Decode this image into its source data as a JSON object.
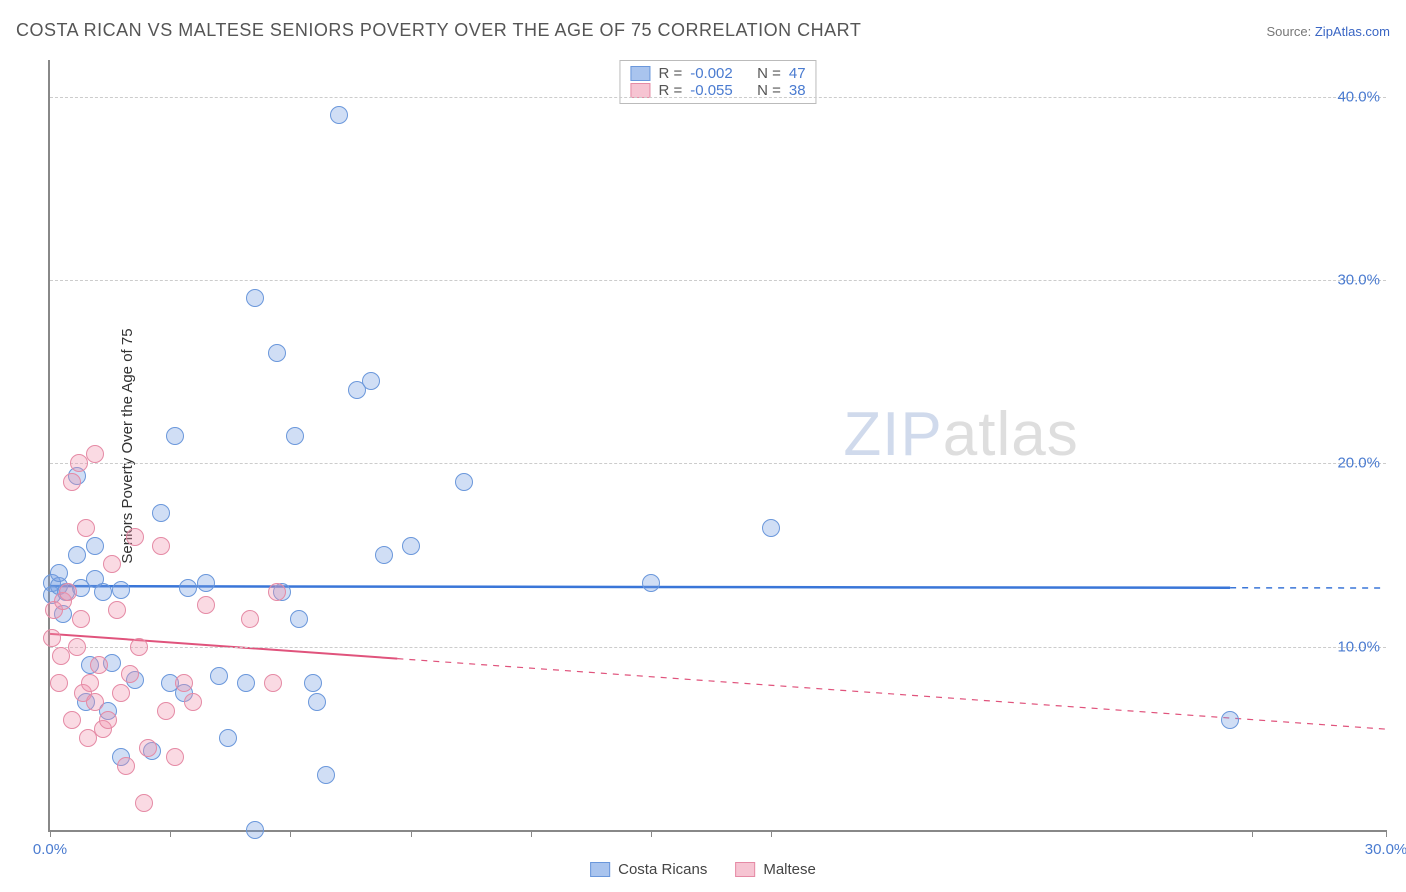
{
  "header": {
    "title": "COSTA RICAN VS MALTESE SENIORS POVERTY OVER THE AGE OF 75 CORRELATION CHART",
    "source_prefix": "Source: ",
    "source_link": "ZipAtlas.com"
  },
  "chart": {
    "type": "scatter",
    "background_color": "#ffffff",
    "grid_color": "#cccccc",
    "axis_color": "#888888",
    "ylabel": "Seniors Poverty Over the Age of 75",
    "label_fontsize": 15,
    "tick_fontsize": 15,
    "tick_color": "#4a7bd0",
    "xlim": [
      0,
      30
    ],
    "ylim": [
      0,
      42
    ],
    "xticks": [
      0,
      2.7,
      5.4,
      8.1,
      10.8,
      13.5,
      16.2,
      27,
      30
    ],
    "xtick_labels": {
      "0": "0.0%",
      "30": "30.0%"
    },
    "yticks": [
      10,
      20,
      30,
      40
    ],
    "ytick_labels": {
      "10": "10.0%",
      "20": "20.0%",
      "30": "30.0%",
      "40": "40.0%"
    },
    "marker_radius": 9,
    "marker_border_width": 1.5,
    "watermark": {
      "zip": "ZIP",
      "atlas": "atlas"
    },
    "series": [
      {
        "name": "Costa Ricans",
        "fill": "rgba(120,160,225,0.35)",
        "stroke": "#6a97db",
        "swatch_fill": "#a9c4ee",
        "swatch_border": "#6a97db",
        "stats": {
          "R": "-0.002",
          "N": "47"
        },
        "trend": {
          "y_start": 13.3,
          "y_end": 13.2,
          "x_solid_end": 26.5,
          "color": "#3a76d8",
          "width": 2.5
        },
        "points": [
          [
            0.05,
            13.5
          ],
          [
            0.05,
            12.8
          ],
          [
            0.2,
            13.3
          ],
          [
            0.2,
            14.0
          ],
          [
            0.3,
            11.8
          ],
          [
            0.35,
            13.0
          ],
          [
            0.6,
            15.0
          ],
          [
            0.6,
            19.3
          ],
          [
            0.7,
            13.2
          ],
          [
            0.8,
            7.0
          ],
          [
            0.9,
            9.0
          ],
          [
            1.0,
            13.7
          ],
          [
            1.0,
            15.5
          ],
          [
            1.2,
            13.0
          ],
          [
            1.3,
            6.5
          ],
          [
            1.4,
            9.1
          ],
          [
            1.6,
            13.1
          ],
          [
            1.6,
            4.0
          ],
          [
            1.9,
            8.2
          ],
          [
            2.3,
            4.3
          ],
          [
            2.5,
            17.3
          ],
          [
            2.7,
            8.0
          ],
          [
            2.8,
            21.5
          ],
          [
            3.0,
            7.5
          ],
          [
            3.1,
            13.2
          ],
          [
            3.5,
            13.5
          ],
          [
            3.8,
            8.4
          ],
          [
            4.0,
            5.0
          ],
          [
            4.4,
            8.0
          ],
          [
            4.6,
            29.0
          ],
          [
            4.6,
            0.0
          ],
          [
            5.1,
            26.0
          ],
          [
            5.2,
            13.0
          ],
          [
            5.5,
            21.5
          ],
          [
            5.6,
            11.5
          ],
          [
            5.9,
            8.0
          ],
          [
            6.0,
            7.0
          ],
          [
            6.2,
            3.0
          ],
          [
            6.5,
            39.0
          ],
          [
            6.9,
            24.0
          ],
          [
            7.2,
            24.5
          ],
          [
            7.5,
            15.0
          ],
          [
            8.1,
            15.5
          ],
          [
            9.3,
            19.0
          ],
          [
            13.5,
            13.5
          ],
          [
            16.2,
            16.5
          ],
          [
            26.5,
            6.0
          ]
        ]
      },
      {
        "name": "Maltese",
        "fill": "rgba(240,150,175,0.35)",
        "stroke": "#e58aa5",
        "swatch_fill": "#f6c4d2",
        "swatch_border": "#e58aa5",
        "stats": {
          "R": "-0.055",
          "N": "38"
        },
        "trend": {
          "y_start": 10.7,
          "y_end": 5.5,
          "x_solid_end": 7.8,
          "color": "#e0537c",
          "width": 2
        },
        "points": [
          [
            0.05,
            10.5
          ],
          [
            0.1,
            12.0
          ],
          [
            0.2,
            8.0
          ],
          [
            0.25,
            9.5
          ],
          [
            0.3,
            12.5
          ],
          [
            0.4,
            13.0
          ],
          [
            0.5,
            19.0
          ],
          [
            0.5,
            6.0
          ],
          [
            0.6,
            10.0
          ],
          [
            0.65,
            20.0
          ],
          [
            0.7,
            11.5
          ],
          [
            0.75,
            7.5
          ],
          [
            0.8,
            16.5
          ],
          [
            0.85,
            5.0
          ],
          [
            0.9,
            8.0
          ],
          [
            1.0,
            20.5
          ],
          [
            1.0,
            7.0
          ],
          [
            1.1,
            9.0
          ],
          [
            1.2,
            5.5
          ],
          [
            1.3,
            6.0
          ],
          [
            1.4,
            14.5
          ],
          [
            1.5,
            12.0
          ],
          [
            1.6,
            7.5
          ],
          [
            1.7,
            3.5
          ],
          [
            1.8,
            8.5
          ],
          [
            1.9,
            16.0
          ],
          [
            2.0,
            10.0
          ],
          [
            2.1,
            1.5
          ],
          [
            2.2,
            4.5
          ],
          [
            2.5,
            15.5
          ],
          [
            2.6,
            6.5
          ],
          [
            2.8,
            4.0
          ],
          [
            3.0,
            8.0
          ],
          [
            3.2,
            7.0
          ],
          [
            3.5,
            12.3
          ],
          [
            4.5,
            11.5
          ],
          [
            5.0,
            8.0
          ],
          [
            5.1,
            13.0
          ]
        ]
      }
    ],
    "bottom_legend": [
      "Costa Ricans",
      "Maltese"
    ],
    "stats_labels": {
      "R": "R =",
      "N": "N ="
    }
  }
}
